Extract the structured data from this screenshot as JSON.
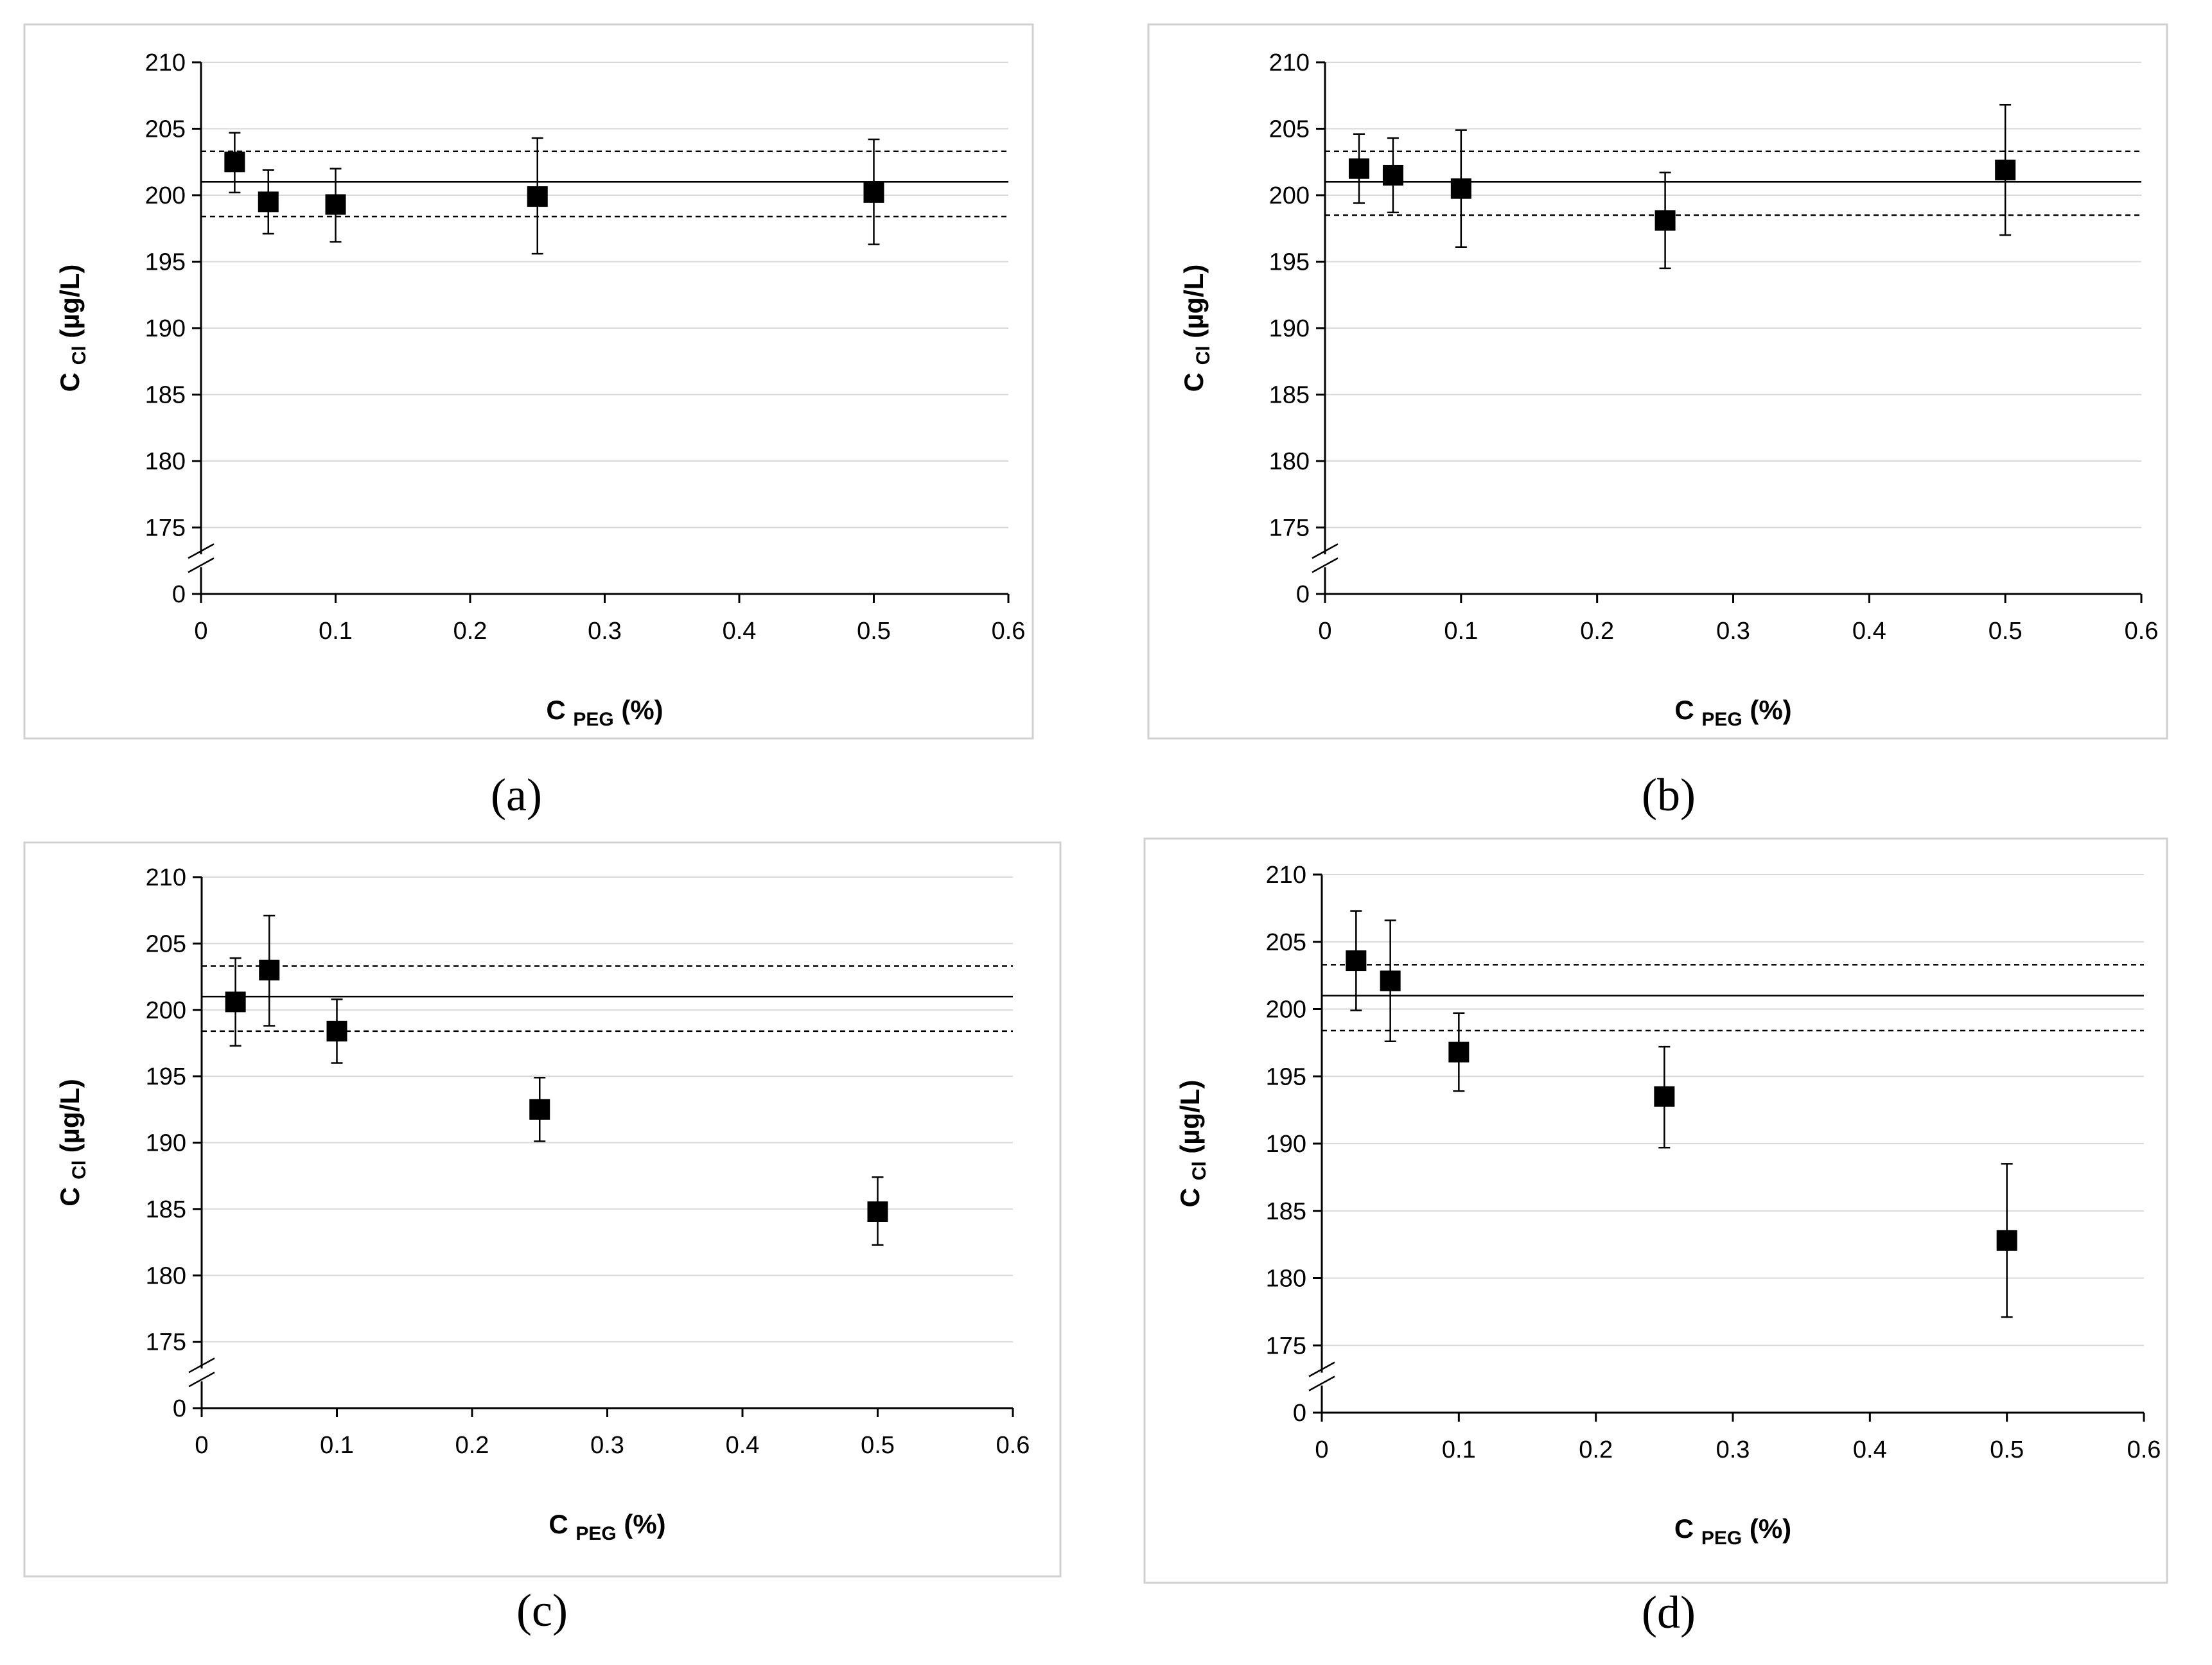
{
  "chart_data": [
    {
      "type": "scatter",
      "panel_label": "(a)",
      "xlabel_main": "C",
      "xlabel_sub": "PEG",
      "xlabel_unit": "(%)",
      "ylabel_main": "C",
      "ylabel_sub": "Cl",
      "ylabel_unit": "(µg/L)",
      "x_ticks": [
        "0",
        "0.1",
        "0.2",
        "0.3",
        "0.4",
        "0.5",
        "0.6"
      ],
      "y_ticks": [
        "0",
        "175",
        "180",
        "185",
        "190",
        "195",
        "200",
        "205",
        "210"
      ],
      "xlim": [
        0,
        0.6
      ],
      "ylim_broken": [
        175,
        210
      ],
      "y_break_base": 0,
      "grid": true,
      "reference_lines": {
        "mean": 201,
        "upper": 203.3,
        "lower": 198.4
      },
      "series": [
        {
          "name": "C Cl",
          "points": [
            {
              "x": 0.025,
              "y": 202.5,
              "err_low": 200.2,
              "err_high": 204.7
            },
            {
              "x": 0.05,
              "y": 199.5,
              "err_low": 197.1,
              "err_high": 201.9
            },
            {
              "x": 0.1,
              "y": 199.3,
              "err_low": 196.5,
              "err_high": 202.0
            },
            {
              "x": 0.25,
              "y": 199.9,
              "err_low": 195.6,
              "err_high": 204.3
            },
            {
              "x": 0.5,
              "y": 200.2,
              "err_low": 196.3,
              "err_high": 204.2
            }
          ]
        }
      ]
    },
    {
      "type": "scatter",
      "panel_label": "(b)",
      "xlabel_main": "C",
      "xlabel_sub": "PEG",
      "xlabel_unit": "(%)",
      "ylabel_main": "C",
      "ylabel_sub": "Cl",
      "ylabel_unit": "(µg/L)",
      "x_ticks": [
        "0",
        "0.1",
        "0.2",
        "0.3",
        "0.4",
        "0.5",
        "0.6"
      ],
      "y_ticks": [
        "0",
        "175",
        "180",
        "185",
        "190",
        "195",
        "200",
        "205",
        "210"
      ],
      "xlim": [
        0,
        0.6
      ],
      "ylim_broken": [
        175,
        210
      ],
      "y_break_base": 0,
      "grid": true,
      "reference_lines": {
        "mean": 201,
        "upper": 203.3,
        "lower": 198.5
      },
      "series": [
        {
          "name": "C Cl",
          "points": [
            {
              "x": 0.025,
              "y": 202.0,
              "err_low": 199.4,
              "err_high": 204.6
            },
            {
              "x": 0.05,
              "y": 201.5,
              "err_low": 198.7,
              "err_high": 204.3
            },
            {
              "x": 0.1,
              "y": 200.5,
              "err_low": 196.1,
              "err_high": 204.9
            },
            {
              "x": 0.25,
              "y": 198.1,
              "err_low": 194.5,
              "err_high": 201.7
            },
            {
              "x": 0.5,
              "y": 201.9,
              "err_low": 197.0,
              "err_high": 206.8
            }
          ]
        }
      ]
    },
    {
      "type": "scatter",
      "panel_label": "(c)",
      "xlabel_main": "C",
      "xlabel_sub": "PEG",
      "xlabel_unit": "(%)",
      "ylabel_main": "C",
      "ylabel_sub": "Cl",
      "ylabel_unit": "(µg/L)",
      "x_ticks": [
        "0",
        "0.1",
        "0.2",
        "0.3",
        "0.4",
        "0.5",
        "0.6"
      ],
      "y_ticks": [
        "0",
        "175",
        "180",
        "185",
        "190",
        "195",
        "200",
        "205",
        "210"
      ],
      "xlim": [
        0,
        0.6
      ],
      "ylim_broken": [
        175,
        210
      ],
      "y_break_base": 0,
      "grid": true,
      "reference_lines": {
        "mean": 201,
        "upper": 203.3,
        "lower": 198.4
      },
      "series": [
        {
          "name": "C Cl",
          "points": [
            {
              "x": 0.025,
              "y": 200.6,
              "err_low": 197.3,
              "err_high": 203.9
            },
            {
              "x": 0.05,
              "y": 203.0,
              "err_low": 198.8,
              "err_high": 207.1
            },
            {
              "x": 0.1,
              "y": 198.4,
              "err_low": 196.0,
              "err_high": 200.8
            },
            {
              "x": 0.25,
              "y": 192.5,
              "err_low": 190.1,
              "err_high": 194.9
            },
            {
              "x": 0.5,
              "y": 184.8,
              "err_low": 182.3,
              "err_high": 187.4
            }
          ]
        }
      ]
    },
    {
      "type": "scatter",
      "panel_label": "(d)",
      "xlabel_main": "C",
      "xlabel_sub": "PEG",
      "xlabel_unit": "(%)",
      "ylabel_main": "C",
      "ylabel_sub": "Cl",
      "ylabel_unit": "(µg/L)",
      "x_ticks": [
        "0",
        "0.1",
        "0.2",
        "0.3",
        "0.4",
        "0.5",
        "0.6"
      ],
      "y_ticks": [
        "0",
        "175",
        "180",
        "185",
        "190",
        "195",
        "200",
        "205",
        "210"
      ],
      "xlim": [
        0,
        0.6
      ],
      "ylim_broken": [
        175,
        210
      ],
      "y_break_base": 0,
      "grid": true,
      "reference_lines": {
        "mean": 201,
        "upper": 203.3,
        "lower": 198.4
      },
      "series": [
        {
          "name": "C Cl",
          "points": [
            {
              "x": 0.025,
              "y": 203.6,
              "err_low": 199.9,
              "err_high": 207.3
            },
            {
              "x": 0.05,
              "y": 202.1,
              "err_low": 197.6,
              "err_high": 206.6
            },
            {
              "x": 0.1,
              "y": 196.8,
              "err_low": 193.9,
              "err_high": 199.7
            },
            {
              "x": 0.25,
              "y": 193.5,
              "err_low": 189.7,
              "err_high": 197.2
            },
            {
              "x": 0.5,
              "y": 182.8,
              "err_low": 177.1,
              "err_high": 188.5
            }
          ]
        }
      ]
    }
  ]
}
